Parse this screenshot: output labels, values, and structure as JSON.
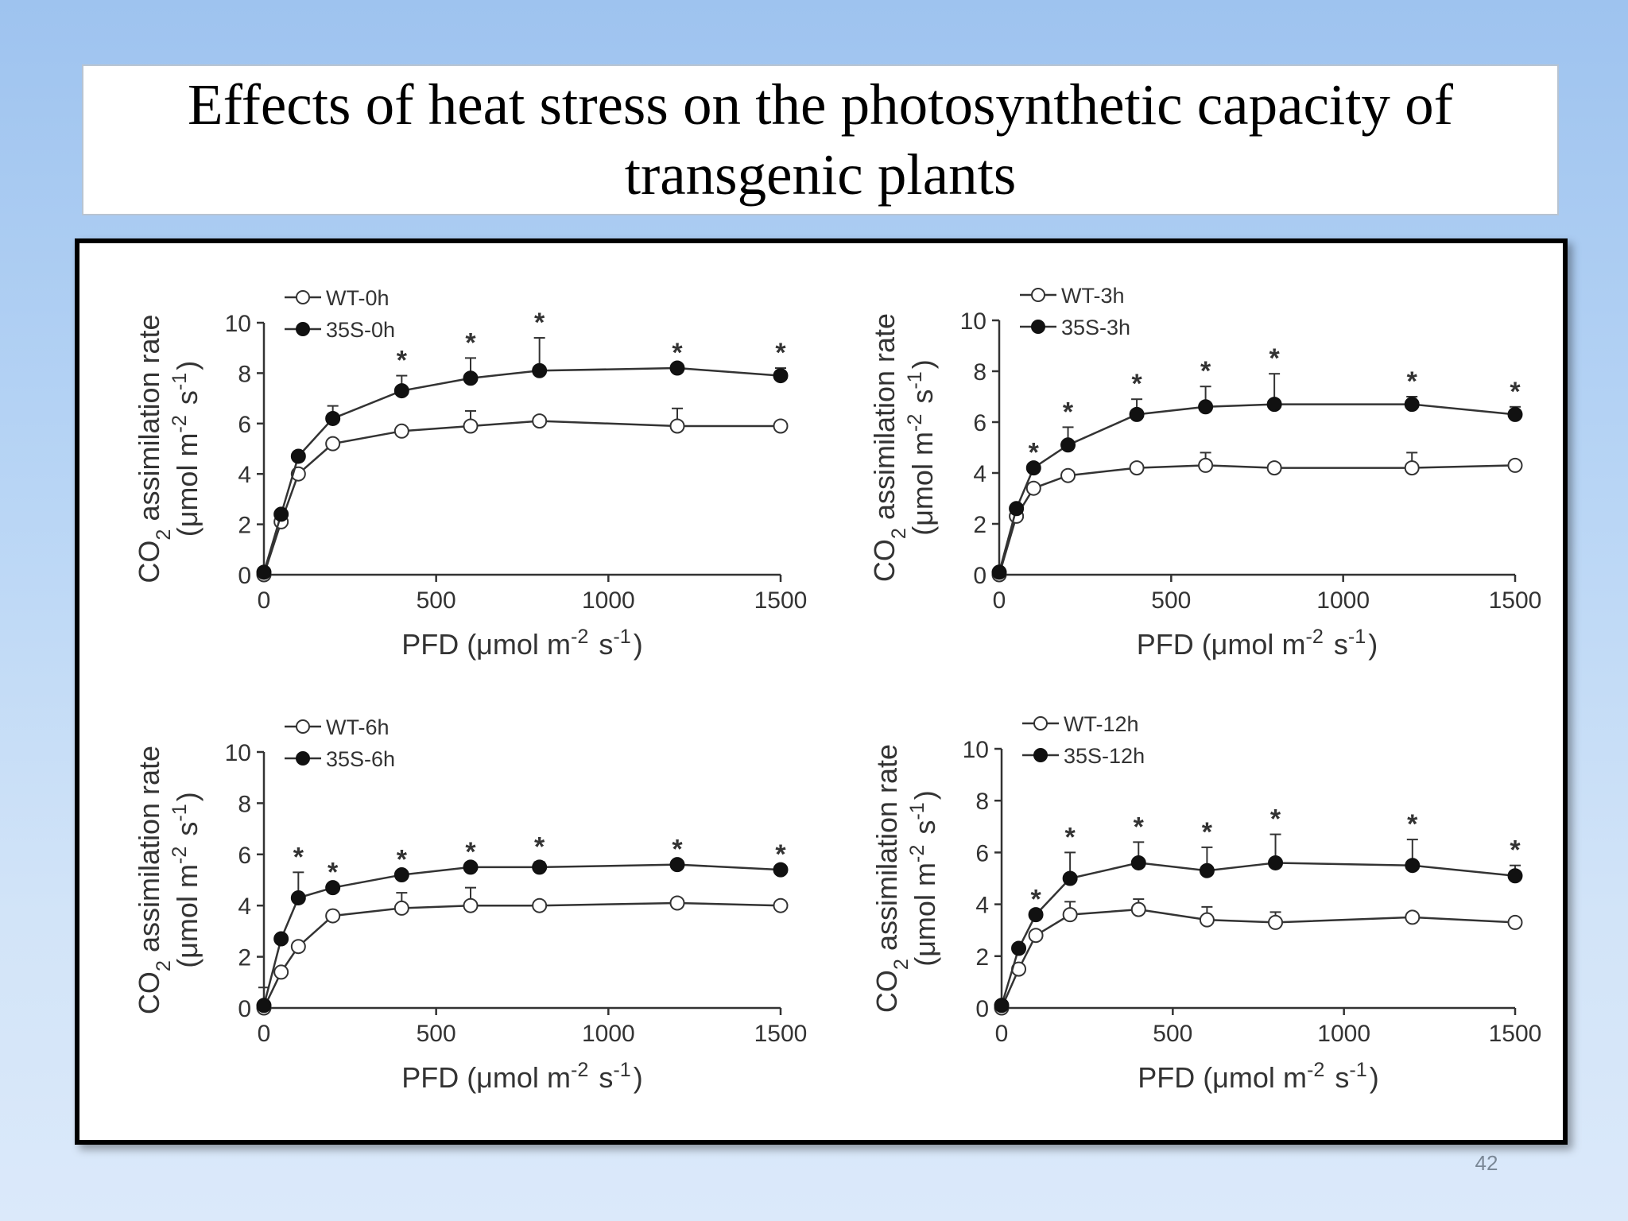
{
  "slide": {
    "title_line1": "Effects of heat stress on the photosynthetic capacity of",
    "title_line2": "transgenic plants",
    "page_number": "42"
  },
  "colors": {
    "series_line": "#333333",
    "open_marker_fill": "#ffffff",
    "filled_marker": "#111111"
  },
  "chart_data": [
    {
      "type": "line",
      "xlabel": "PFD (μmol m-2 s-1)",
      "ylabel": "CO2 assimilation rate (μmol m-2 s-1)",
      "xlim": [
        0,
        1500
      ],
      "ylim": [
        0,
        10
      ],
      "xticks": [
        0,
        500,
        1000,
        1500
      ],
      "yticks": [
        0,
        2,
        4,
        6,
        8,
        10
      ],
      "legend_position": "top-left",
      "x": [
        0,
        50,
        100,
        200,
        400,
        600,
        800,
        1200,
        1500
      ],
      "series": [
        {
          "name": "WT-0h",
          "marker": "open",
          "values": [
            0,
            2.1,
            4.0,
            5.2,
            5.7,
            5.9,
            6.1,
            5.9,
            5.9
          ],
          "errors": [
            0,
            0,
            0,
            0,
            0,
            0.6,
            0,
            0.7,
            0
          ]
        },
        {
          "name": "35S-0h",
          "marker": "filled",
          "values": [
            0.1,
            2.4,
            4.7,
            6.2,
            7.3,
            7.8,
            8.1,
            8.2,
            7.9
          ],
          "errors": [
            0,
            0,
            0,
            0.5,
            0.6,
            0.8,
            1.3,
            0,
            0.3
          ]
        }
      ],
      "significance_x": [
        400,
        600,
        800,
        1200,
        1500
      ]
    },
    {
      "type": "line",
      "xlabel": "PFD (μmol m-2 s-1)",
      "ylabel": "CO2 assimilation rate (μmol m-2 s-1)",
      "xlim": [
        0,
        1500
      ],
      "ylim": [
        0,
        10
      ],
      "xticks": [
        0,
        500,
        1000,
        1500
      ],
      "yticks": [
        0,
        2,
        4,
        6,
        8,
        10
      ],
      "legend_position": "top-left",
      "x": [
        0,
        50,
        100,
        200,
        400,
        600,
        800,
        1200,
        1500
      ],
      "series": [
        {
          "name": "WT-3h",
          "marker": "open",
          "values": [
            0,
            2.3,
            3.4,
            3.9,
            4.2,
            4.3,
            4.2,
            4.2,
            4.3
          ],
          "errors": [
            0,
            0,
            0,
            0,
            0,
            0.5,
            0,
            0.6,
            0
          ]
        },
        {
          "name": "35S-3h",
          "marker": "filled",
          "values": [
            0.1,
            2.6,
            4.2,
            5.1,
            6.3,
            6.6,
            6.7,
            6.7,
            6.3
          ],
          "errors": [
            0,
            0,
            0,
            0.7,
            0.6,
            0.8,
            1.2,
            0.3,
            0.3
          ]
        }
      ],
      "significance_x": [
        100,
        200,
        400,
        600,
        800,
        1200,
        1500
      ]
    },
    {
      "type": "line",
      "xlabel": "PFD (μmol m-2 s-1)",
      "ylabel": "CO2 assimilation rate (μmol m-2 s-1)",
      "xlim": [
        0,
        1500
      ],
      "ylim": [
        0,
        10
      ],
      "xticks": [
        0,
        500,
        1000,
        1500
      ],
      "yticks": [
        0,
        2,
        4,
        6,
        8,
        10
      ],
      "legend_position": "top-left",
      "x": [
        0,
        50,
        100,
        200,
        400,
        600,
        800,
        1200,
        1500
      ],
      "series": [
        {
          "name": "WT-6h",
          "marker": "open",
          "values": [
            0,
            1.4,
            2.4,
            3.6,
            3.9,
            4.0,
            4.0,
            4.1,
            4.0
          ],
          "errors": [
            0,
            0,
            0,
            0,
            0.6,
            0.7,
            0,
            0,
            0
          ]
        },
        {
          "name": "35S-6h",
          "marker": "filled",
          "values": [
            0.1,
            2.7,
            4.3,
            4.7,
            5.2,
            5.5,
            5.5,
            5.6,
            5.4
          ],
          "errors": [
            0.7,
            0,
            1.0,
            0,
            0,
            0,
            0.2,
            0,
            0
          ]
        }
      ],
      "significance_x": [
        100,
        200,
        400,
        600,
        800,
        1200,
        1500
      ]
    },
    {
      "type": "line",
      "xlabel": "PFD (μmol m-2 s-1)",
      "ylabel": "CO2 assimilation rate (μmol m-2 s-1)",
      "xlim": [
        0,
        1500
      ],
      "ylim": [
        0,
        10
      ],
      "xticks": [
        0,
        500,
        1000,
        1500
      ],
      "yticks": [
        0,
        2,
        4,
        6,
        8,
        10
      ],
      "legend_position": "top-left",
      "x": [
        0,
        50,
        100,
        200,
        400,
        600,
        800,
        1200,
        1500
      ],
      "series": [
        {
          "name": "WT-12h",
          "marker": "open",
          "values": [
            0,
            1.5,
            2.8,
            3.6,
            3.8,
            3.4,
            3.3,
            3.5,
            3.3
          ],
          "errors": [
            0,
            0,
            0,
            0.5,
            0.4,
            0.5,
            0.4,
            0,
            0
          ]
        },
        {
          "name": "35S-12h",
          "marker": "filled",
          "values": [
            0.1,
            2.3,
            3.6,
            5.0,
            5.6,
            5.3,
            5.6,
            5.5,
            5.1
          ],
          "errors": [
            0,
            0,
            0,
            1.0,
            0.8,
            0.9,
            1.1,
            1.0,
            0.4
          ]
        }
      ],
      "significance_x": [
        100,
        200,
        400,
        600,
        800,
        1200,
        1500
      ]
    }
  ]
}
